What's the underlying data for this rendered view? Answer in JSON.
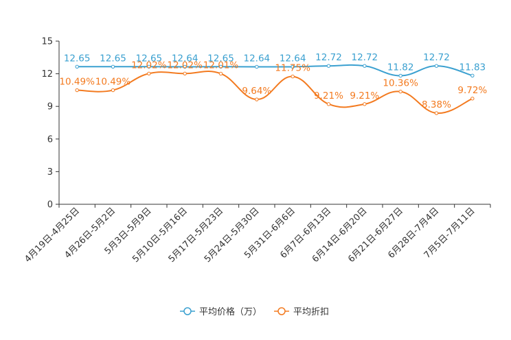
{
  "chart_data": {
    "type": "line",
    "title": "",
    "xlabel": "",
    "ylabel": "",
    "ylim": [
      0,
      15
    ],
    "yticks": [
      "0",
      "3",
      "6",
      "9",
      "12",
      "15"
    ],
    "ytick_values": [
      0,
      3,
      6,
      9,
      12,
      15
    ],
    "categories": [
      "4月19日-4月25日",
      "4月26日-5月2日",
      "5月3日-5月9日",
      "5月10日-5月16日",
      "5月17日-5月23日",
      "5月24日-5月30日",
      "5月31日-6月6日",
      "6月7日-6月13日",
      "6月14日-6月20日",
      "6月21日-6月27日",
      "6月28日-7月4日",
      "7月5日-7月11日"
    ],
    "series": [
      {
        "name": "平均价格（万）",
        "color": "#3aa0d0",
        "values": [
          12.65,
          12.65,
          12.65,
          12.64,
          12.65,
          12.64,
          12.64,
          12.72,
          12.72,
          11.82,
          12.72,
          11.83
        ],
        "labels": [
          "12.65",
          "12.65",
          "12.65",
          "12.64",
          "12.65",
          "12.64",
          "12.64",
          "12.72",
          "12.72",
          "11.82",
          "12.72",
          "11.83"
        ]
      },
      {
        "name": "平均折扣",
        "color": "#f37a1f",
        "values": [
          10.49,
          10.49,
          12.02,
          12.02,
          12.01,
          9.64,
          11.75,
          9.21,
          9.21,
          10.36,
          8.38,
          9.72
        ],
        "labels": [
          "10.49%",
          "10.49%",
          "12.02%",
          "12.02%",
          "12.01%",
          "9.64%",
          "11.75%",
          "9.21%",
          "9.21%",
          "10.36%",
          "8.38%",
          "9.72%"
        ]
      }
    ],
    "legend_position": "bottom-center"
  }
}
